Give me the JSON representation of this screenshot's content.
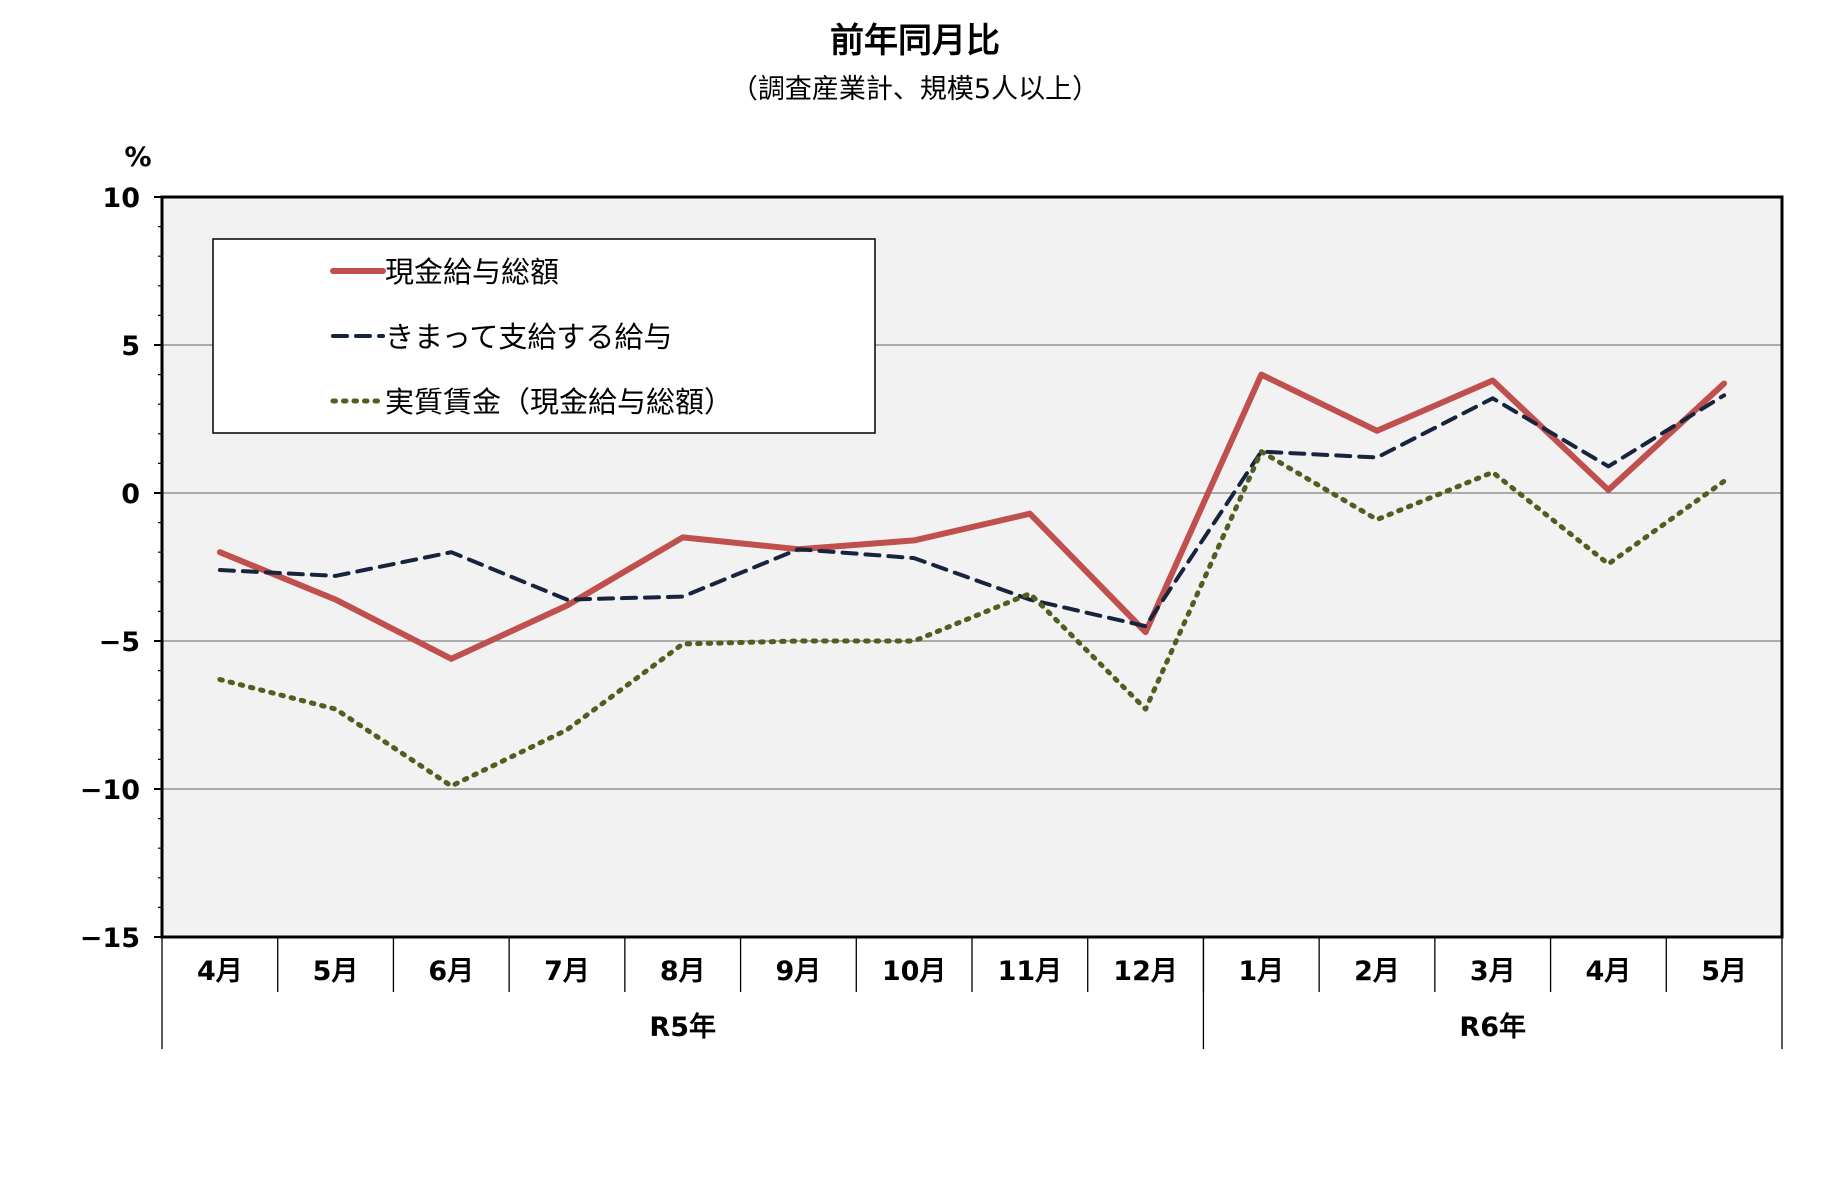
{
  "chart_data": {
    "type": "line",
    "title": "前年同月比",
    "subtitle": "（調査産業計、規模5人以上）",
    "ylabel": "%",
    "ylim": [
      -15,
      10
    ],
    "yticks": [
      "10",
      "5",
      "0",
      "−5",
      "−10",
      "−15"
    ],
    "grid": true,
    "legend_position": "top-left",
    "categories": [
      "4月",
      "5月",
      "6月",
      "7月",
      "8月",
      "9月",
      "10月",
      "11月",
      "12月",
      "1月",
      "2月",
      "3月",
      "4月",
      "5月"
    ],
    "groups": [
      {
        "label": "R5年",
        "count": 9
      },
      {
        "label": "R6年",
        "count": 5
      }
    ],
    "series": [
      {
        "name": "現金給与総額",
        "style": "solid",
        "color": "#C0504D",
        "values": [
          -2.0,
          -3.6,
          -5.6,
          -3.8,
          -1.5,
          -1.9,
          -1.6,
          -0.7,
          -4.7,
          4.0,
          2.1,
          3.8,
          0.1,
          3.7
        ]
      },
      {
        "name": "きまって支給する給与",
        "style": "dashed",
        "color": "#17243D",
        "values": [
          -2.6,
          -2.8,
          -2.0,
          -3.6,
          -3.5,
          -1.9,
          -2.2,
          -3.6,
          -4.5,
          1.4,
          1.2,
          3.2,
          0.9,
          3.3
        ]
      },
      {
        "name": "実質賃金（現金給与総額）",
        "style": "dotted",
        "color": "#4F5F1F",
        "values": [
          -6.3,
          -7.3,
          -9.9,
          -8.0,
          -5.1,
          -5.0,
          -5.0,
          -3.4,
          -7.3,
          1.4,
          -0.9,
          0.7,
          -2.4,
          0.4
        ]
      }
    ]
  }
}
